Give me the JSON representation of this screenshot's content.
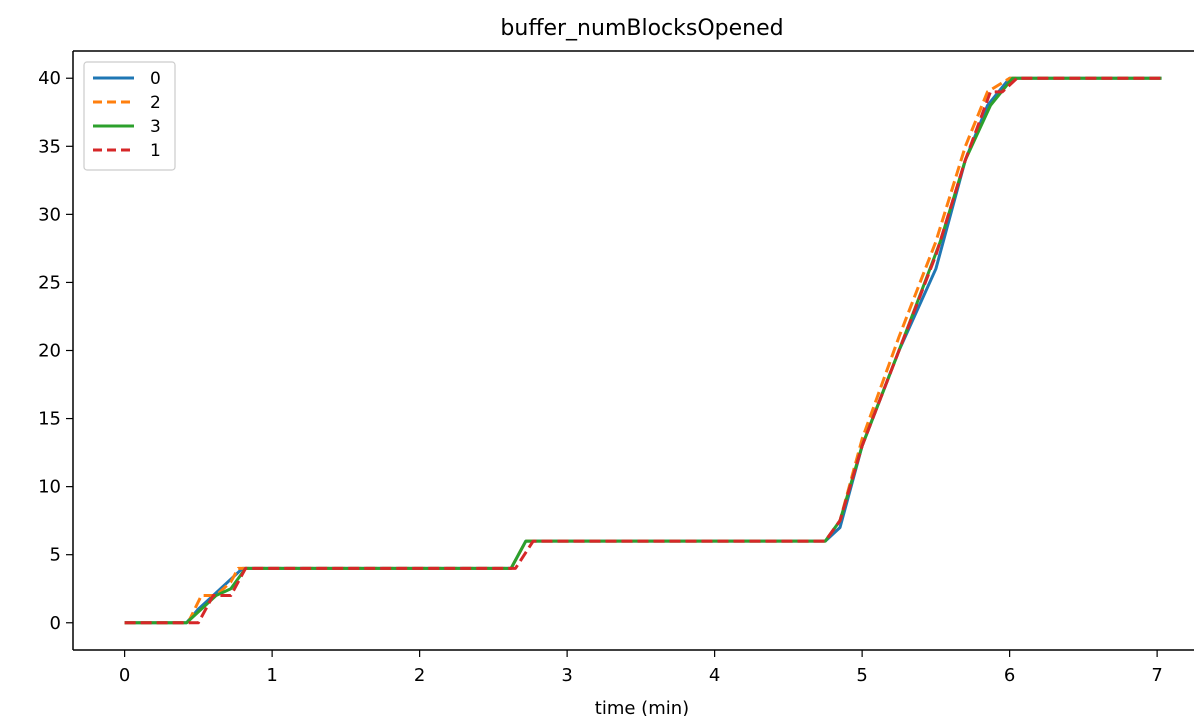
{
  "chart_data": {
    "type": "line",
    "title": "buffer_numBlocksOpened",
    "xlabel": "time (min)",
    "ylabel": "",
    "xlim": [
      -0.35,
      7.25
    ],
    "ylim": [
      -2,
      42
    ],
    "xticks": [
      0,
      1,
      2,
      3,
      4,
      5,
      6,
      7
    ],
    "yticks": [
      0,
      5,
      10,
      15,
      20,
      25,
      30,
      35,
      40
    ],
    "grid": false,
    "legend_position": "top-left",
    "series": [
      {
        "name": "0",
        "color": "#1f77b4",
        "dash": "solid",
        "x": [
          0,
          0.42,
          0.5,
          0.6,
          0.7,
          0.8,
          1.0,
          2.0,
          2.62,
          2.72,
          3.0,
          4.0,
          4.75,
          4.85,
          5.0,
          5.25,
          5.5,
          5.7,
          5.85,
          6.0,
          6.5,
          7.03
        ],
        "y": [
          0,
          0,
          1,
          2,
          3,
          4,
          4,
          4,
          4,
          6,
          6,
          6,
          6,
          7,
          13,
          20,
          26,
          34,
          38,
          40,
          40,
          40
        ]
      },
      {
        "name": "2",
        "color": "#ff7f0e",
        "dash": "dashed",
        "x": [
          0,
          0.43,
          0.52,
          0.62,
          0.72,
          0.77,
          1.0,
          2.0,
          2.62,
          2.72,
          3.0,
          4.0,
          4.75,
          4.85,
          5.0,
          5.25,
          5.5,
          5.7,
          5.85,
          6.0,
          6.5,
          7.03
        ],
        "y": [
          0,
          0,
          2,
          2,
          3,
          4,
          4,
          4,
          4,
          6,
          6,
          6,
          6,
          7.5,
          13.5,
          21,
          28,
          35,
          39,
          40,
          40,
          40
        ]
      },
      {
        "name": "3",
        "color": "#2ca02c",
        "dash": "solid",
        "x": [
          0,
          0.42,
          0.52,
          0.62,
          0.72,
          0.82,
          1.0,
          2.0,
          2.62,
          2.72,
          3.0,
          4.0,
          4.75,
          4.85,
          5.0,
          5.25,
          5.53,
          5.7,
          5.87,
          6.02,
          6.5,
          7.03
        ],
        "y": [
          0,
          0,
          1,
          2,
          2.5,
          4,
          4,
          4,
          4,
          6,
          6,
          6,
          6,
          7.5,
          13,
          20,
          28,
          34,
          38,
          40,
          40,
          40
        ]
      },
      {
        "name": "1",
        "color": "#d62728",
        "dash": "dashed",
        "x": [
          0,
          0.5,
          0.55,
          0.6,
          0.72,
          0.82,
          1.0,
          2.0,
          2.65,
          2.77,
          3.0,
          4.0,
          4.75,
          4.85,
          5.0,
          5.25,
          5.5,
          5.7,
          5.87,
          5.95,
          6.05,
          6.5,
          7.03
        ],
        "y": [
          0,
          0,
          1,
          2,
          2,
          4,
          4,
          4,
          4,
          6,
          6,
          6,
          6,
          7.5,
          13,
          20,
          27,
          34,
          39,
          39,
          40,
          40,
          40
        ]
      }
    ]
  }
}
